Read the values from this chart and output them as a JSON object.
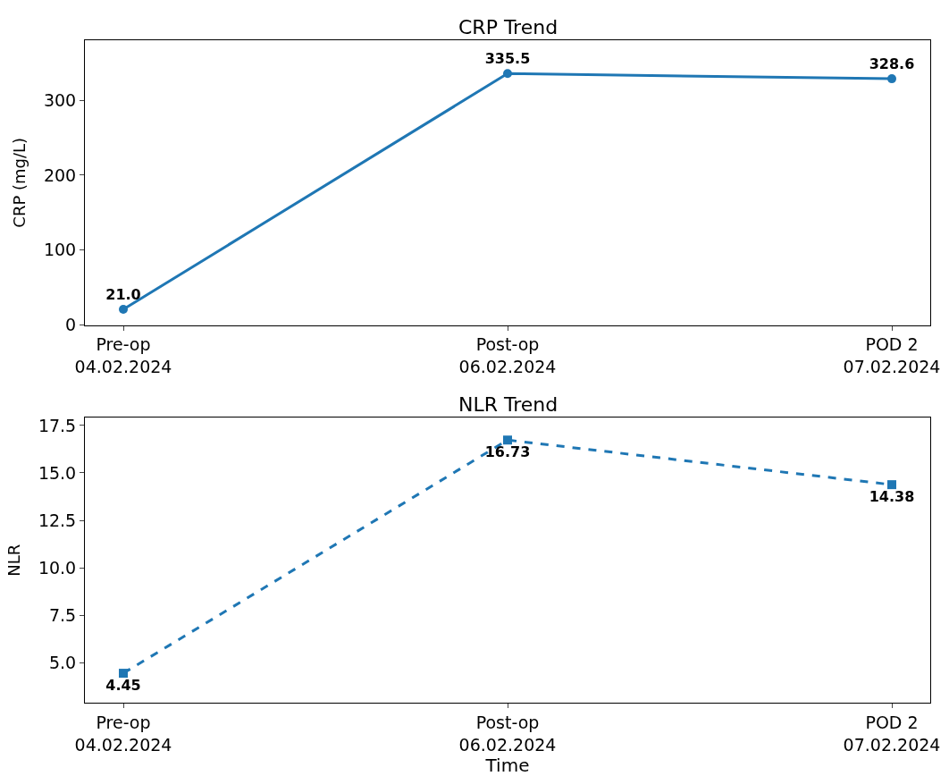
{
  "chart_data": [
    {
      "type": "line",
      "title": "CRP Trend",
      "ylabel": "CRP (mg/L)",
      "categories": [
        "Pre-op\n04.02.2024",
        "Post-op\n06.02.2024",
        "POD 2\n07.02.2024"
      ],
      "series": [
        {
          "color": "#1f77b4",
          "values": [
            21.0,
            335.5,
            328.6
          ],
          "value_labels": [
            "21.0",
            "335.5",
            "328.6"
          ]
        }
      ],
      "ylim": [
        0,
        380
      ],
      "yticks": [
        0,
        100,
        200,
        300
      ],
      "marker": "circle",
      "line_style": "solid"
    },
    {
      "type": "line",
      "title": "NLR Trend",
      "xlabel": "Time",
      "ylabel": "NLR",
      "categories": [
        "Pre-op\n04.02.2024",
        "Post-op\n06.02.2024",
        "POD 2\n07.02.2024"
      ],
      "series": [
        {
          "color": "#1f77b4",
          "values": [
            4.45,
            16.73,
            14.38
          ]
        }
      ],
      "ylim": [
        2.9,
        17.9
      ],
      "yticks": [
        {
          "value": 5,
          "label": "5.0"
        },
        {
          "value": 7.5,
          "label": "7.5"
        },
        {
          "value": 10,
          "label": "10.0"
        },
        {
          "value": 12.5,
          "label": "12.5"
        },
        {
          "value": 15,
          "label": "15.0"
        },
        {
          "value": 17.5,
          "label": "17.5"
        }
      ],
      "marker": "square",
      "line_style": "dashed",
      "data_labels": true
    }
  ]
}
